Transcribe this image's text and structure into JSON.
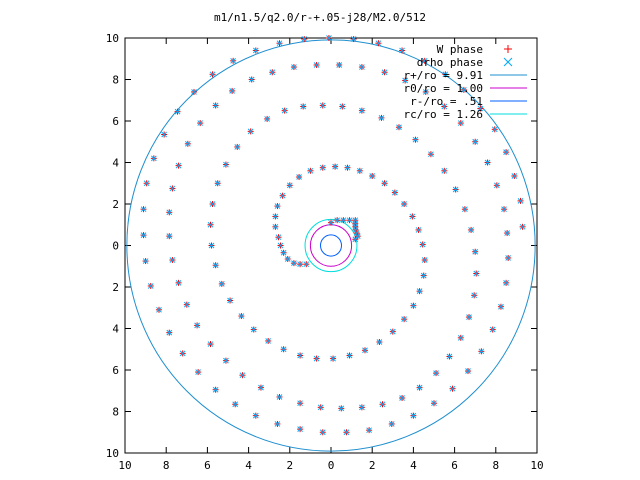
{
  "chart_data": {
    "type": "scatter",
    "title": "m1/n1.5/q2.0/r-+.05-j28/M2.0/512",
    "xlabel": "",
    "ylabel": "",
    "xlim": [
      -10,
      10
    ],
    "ylim": [
      -10,
      10
    ],
    "x_tick_labels": [
      "10",
      "8",
      "6",
      "4",
      "2",
      "0",
      "2",
      "4",
      "6",
      "8",
      "10"
    ],
    "y_tick_labels": [
      "10",
      "8",
      "6",
      "4",
      "2",
      "0",
      "2",
      "4",
      "6",
      "8",
      "10"
    ],
    "grid": false,
    "legend_position": "top-right",
    "colors": {
      "w_phase": "#ff0000",
      "drho_phase": "#00aaff",
      "r_plus": "#1f8fd0",
      "r_zero": "#cc00cc",
      "r_minus": "#0060ff",
      "r_c": "#00dddd",
      "axes": "#000000"
    },
    "series": [
      {
        "name": "W phase",
        "marker": "+",
        "color": "#ff0000"
      },
      {
        "name": "drho phase",
        "marker": "x",
        "color": "#00aaff"
      }
    ],
    "spiral_points": {
      "note_values": "x,y in data units along the phase-front spiral",
      "points": [
        [
          1.18,
          1.22
        ],
        [
          1.18,
          1.05
        ],
        [
          1.18,
          0.9
        ],
        [
          1.2,
          0.75
        ],
        [
          1.25,
          0.6
        ],
        [
          1.3,
          0.45
        ],
        [
          1.18,
          0.3
        ],
        [
          0.9,
          1.22
        ],
        [
          0.6,
          1.22
        ],
        [
          0.3,
          1.22
        ],
        [
          0.0,
          1.1
        ],
        [
          -1.2,
          -0.9
        ],
        [
          -1.5,
          -0.9
        ],
        [
          -1.8,
          -0.85
        ],
        [
          -2.1,
          -0.65
        ],
        [
          -2.3,
          -0.35
        ],
        [
          -2.45,
          0.0
        ],
        [
          -2.55,
          0.4
        ],
        [
          -2.7,
          0.9
        ],
        [
          -2.7,
          1.4
        ],
        [
          -2.6,
          1.9
        ],
        [
          -2.35,
          2.4
        ],
        [
          -2.0,
          2.9
        ],
        [
          -1.55,
          3.3
        ],
        [
          -1.0,
          3.6
        ],
        [
          -0.4,
          3.75
        ],
        [
          0.2,
          3.8
        ],
        [
          0.8,
          3.75
        ],
        [
          1.4,
          3.6
        ],
        [
          2.0,
          3.35
        ],
        [
          2.6,
          3.0
        ],
        [
          3.1,
          2.55
        ],
        [
          3.55,
          2.0
        ],
        [
          3.95,
          1.4
        ],
        [
          4.25,
          0.75
        ],
        [
          4.45,
          0.05
        ],
        [
          4.55,
          -0.7
        ],
        [
          4.5,
          -1.45
        ],
        [
          4.3,
          -2.2
        ],
        [
          4.0,
          -2.9
        ],
        [
          3.55,
          -3.55
        ],
        [
          3.0,
          -4.15
        ],
        [
          2.35,
          -4.65
        ],
        [
          1.65,
          -5.05
        ],
        [
          0.9,
          -5.3
        ],
        [
          0.1,
          -5.45
        ],
        [
          -0.7,
          -5.45
        ],
        [
          -1.5,
          -5.3
        ],
        [
          -2.3,
          -5.0
        ],
        [
          -3.05,
          -4.6
        ],
        [
          -3.75,
          -4.05
        ],
        [
          -4.35,
          -3.4
        ],
        [
          -4.9,
          -2.65
        ],
        [
          -5.3,
          -1.85
        ],
        [
          -5.6,
          -0.95
        ],
        [
          -5.8,
          0.0
        ],
        [
          -5.85,
          1.0
        ],
        [
          -5.75,
          2.0
        ],
        [
          -5.5,
          3.0
        ],
        [
          -5.1,
          3.9
        ],
        [
          -4.55,
          4.75
        ],
        [
          -3.9,
          5.5
        ],
        [
          -3.1,
          6.1
        ],
        [
          -2.25,
          6.5
        ],
        [
          -1.35,
          6.7
        ],
        [
          -0.4,
          6.75
        ],
        [
          0.55,
          6.7
        ],
        [
          1.5,
          6.5
        ],
        [
          2.45,
          6.15
        ],
        [
          3.3,
          5.7
        ],
        [
          4.1,
          5.1
        ],
        [
          4.85,
          4.4
        ],
        [
          5.5,
          3.6
        ],
        [
          6.05,
          2.7
        ],
        [
          6.5,
          1.75
        ],
        [
          6.8,
          0.75
        ],
        [
          7.0,
          -0.3
        ],
        [
          7.05,
          -1.35
        ],
        [
          6.95,
          -2.4
        ],
        [
          6.7,
          -3.45
        ],
        [
          6.3,
          -4.45
        ],
        [
          5.75,
          -5.35
        ],
        [
          5.1,
          -6.15
        ],
        [
          4.3,
          -6.85
        ],
        [
          3.45,
          -7.35
        ],
        [
          2.5,
          -7.65
        ],
        [
          1.5,
          -7.8
        ],
        [
          0.5,
          -7.85
        ],
        [
          -0.5,
          -7.8
        ],
        [
          -1.5,
          -7.6
        ],
        [
          -2.5,
          -7.3
        ],
        [
          -3.4,
          -6.85
        ],
        [
          -4.3,
          -6.25
        ],
        [
          -5.1,
          -5.55
        ],
        [
          -5.85,
          -4.75
        ],
        [
          -6.5,
          -3.85
        ],
        [
          -7.0,
          -2.85
        ],
        [
          -7.4,
          -1.8
        ],
        [
          -7.7,
          -0.7
        ],
        [
          -7.85,
          0.45
        ],
        [
          -7.85,
          1.6
        ],
        [
          -7.7,
          2.75
        ],
        [
          -7.4,
          3.85
        ],
        [
          -6.95,
          4.9
        ],
        [
          -6.35,
          5.9
        ],
        [
          -5.6,
          6.75
        ],
        [
          -4.8,
          7.45
        ],
        [
          -3.85,
          8.0
        ],
        [
          -2.85,
          8.35
        ],
        [
          -1.8,
          8.6
        ],
        [
          -0.7,
          8.7
        ],
        [
          0.4,
          8.7
        ],
        [
          1.5,
          8.6
        ],
        [
          2.6,
          8.35
        ],
        [
          3.6,
          7.95
        ],
        [
          4.6,
          7.4
        ],
        [
          5.5,
          6.7
        ],
        [
          6.3,
          5.9
        ],
        [
          7.0,
          5.0
        ],
        [
          7.6,
          4.0
        ],
        [
          8.05,
          2.9
        ],
        [
          8.4,
          1.75
        ],
        [
          8.55,
          0.6
        ],
        [
          8.6,
          -0.6
        ],
        [
          8.5,
          -1.8
        ],
        [
          8.25,
          -2.95
        ],
        [
          7.85,
          -4.05
        ],
        [
          7.3,
          -5.1
        ],
        [
          6.65,
          -6.05
        ],
        [
          5.9,
          -6.9
        ],
        [
          5.0,
          -7.6
        ],
        [
          4.0,
          -8.2
        ],
        [
          2.95,
          -8.6
        ],
        [
          1.85,
          -8.9
        ],
        [
          0.75,
          -9.0
        ],
        [
          -0.4,
          -9.0
        ],
        [
          -1.5,
          -8.85
        ],
        [
          -2.6,
          -8.6
        ],
        [
          -3.65,
          -8.2
        ],
        [
          -4.65,
          -7.65
        ],
        [
          -5.6,
          -6.95
        ],
        [
          -6.45,
          -6.1
        ],
        [
          -7.2,
          -5.2
        ],
        [
          -7.85,
          -4.2
        ],
        [
          -8.35,
          -3.1
        ],
        [
          -8.75,
          -1.95
        ],
        [
          -9.0,
          -0.75
        ],
        [
          -9.1,
          0.5
        ],
        [
          -9.1,
          1.75
        ],
        [
          -8.95,
          3.0
        ],
        [
          -8.6,
          4.2
        ],
        [
          -8.1,
          5.35
        ],
        [
          -7.45,
          6.45
        ],
        [
          -6.65,
          7.4
        ],
        [
          -5.75,
          8.25
        ],
        [
          -4.75,
          8.9
        ],
        [
          -3.65,
          9.4
        ],
        [
          -2.5,
          9.75
        ],
        [
          -1.3,
          9.95
        ],
        [
          -0.1,
          10.0
        ],
        [
          1.1,
          9.95
        ],
        [
          2.3,
          9.75
        ],
        [
          3.45,
          9.4
        ],
        [
          4.55,
          8.9
        ],
        [
          5.55,
          8.25
        ],
        [
          6.45,
          7.5
        ],
        [
          7.25,
          6.6
        ],
        [
          7.95,
          5.6
        ],
        [
          8.5,
          4.5
        ],
        [
          8.9,
          3.35
        ],
        [
          9.2,
          2.15
        ],
        [
          9.3,
          0.9
        ]
      ]
    },
    "circles": [
      {
        "name": "r+/ro = 9.91",
        "radius": 9.91,
        "color": "#1f8fd0"
      },
      {
        "name": "r0/ro = 1.00",
        "radius": 1.0,
        "color": "#cc00cc"
      },
      {
        "name": "r-/ro = .51",
        "radius": 0.51,
        "color": "#0060ff"
      },
      {
        "name": "rc/ro = 1.26",
        "radius": 1.26,
        "color": "#00dddd"
      }
    ]
  }
}
